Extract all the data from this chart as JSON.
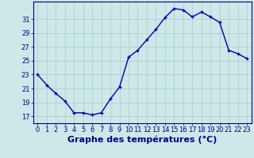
{
  "x": [
    0,
    1,
    2,
    3,
    4,
    5,
    6,
    7,
    8,
    9,
    10,
    11,
    12,
    13,
    14,
    15,
    16,
    17,
    18,
    19,
    20,
    21,
    22,
    23
  ],
  "y": [
    23,
    21.5,
    20.3,
    19.2,
    17.5,
    17.5,
    17.2,
    17.5,
    19.5,
    21.2,
    25.5,
    26.5,
    28.0,
    29.5,
    31.2,
    32.5,
    32.3,
    31.3,
    32.0,
    31.3,
    30.5,
    26.5,
    26.0,
    25.3
  ],
  "line_color": "#0000aa",
  "marker": "+",
  "bg_color": "#cce8e8",
  "grid_color": "#aacccc",
  "xlabel": "Graphe des températures (°C)",
  "xlabel_color": "#000088",
  "xlabel_fontsize": 8,
  "ylim": [
    16,
    33.5
  ],
  "yticks": [
    17,
    19,
    21,
    23,
    25,
    27,
    29,
    31
  ],
  "xticks": [
    0,
    1,
    2,
    3,
    4,
    5,
    6,
    7,
    8,
    9,
    10,
    11,
    12,
    13,
    14,
    15,
    16,
    17,
    18,
    19,
    20,
    21,
    22,
    23
  ],
  "tick_color": "#000088",
  "tick_fontsize": 6,
  "spine_color": "#000088",
  "linewidth": 1.0,
  "markersize": 3
}
